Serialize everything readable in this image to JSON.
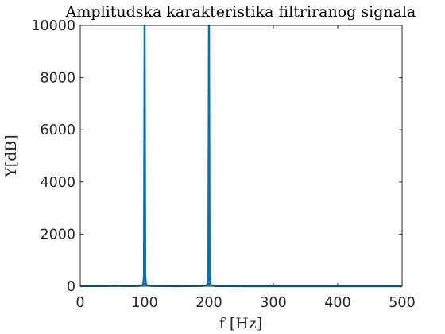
{
  "chart_data": {
    "type": "line",
    "title": "Amplitudska karakteristika filtriranog signala",
    "xlabel": "f [Hz]",
    "ylabel": "Y[dB]",
    "xlim": [
      0,
      500
    ],
    "ylim": [
      0,
      10000
    ],
    "xticks": [
      "0",
      "100",
      "200",
      "300",
      "400",
      "500"
    ],
    "yticks": [
      "0",
      "2000",
      "4000",
      "6000",
      "8000",
      "10000"
    ],
    "grid": false,
    "series_color": "#0072BD",
    "x": [
      0,
      20,
      40,
      55,
      60,
      70,
      80,
      90,
      96,
      98,
      99,
      100,
      101,
      102,
      104,
      110,
      130,
      150,
      170,
      190,
      196,
      198,
      199,
      200,
      201,
      202,
      204,
      210,
      250,
      300,
      350,
      400,
      450,
      500
    ],
    "y": [
      5,
      6,
      8,
      15,
      10,
      8,
      8,
      10,
      30,
      90,
      400,
      10000,
      400,
      90,
      30,
      10,
      6,
      5,
      6,
      10,
      30,
      90,
      400,
      10000,
      400,
      90,
      30,
      8,
      5,
      4,
      4,
      3,
      3,
      3
    ]
  }
}
